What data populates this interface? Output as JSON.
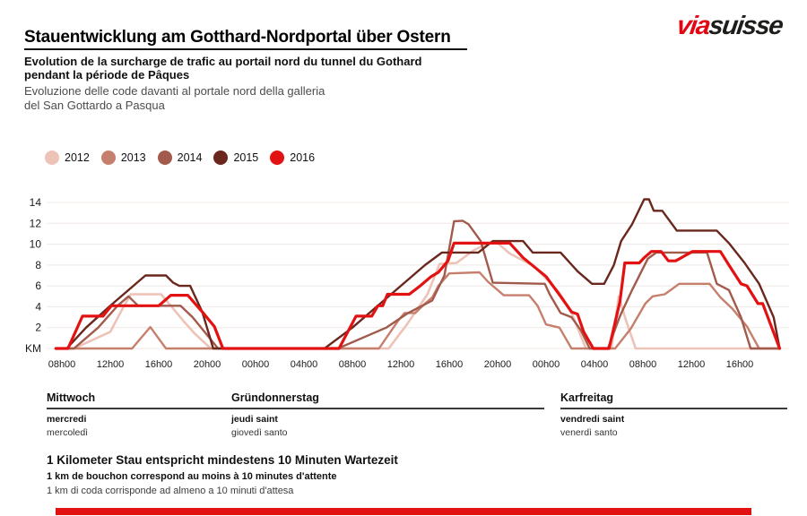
{
  "header": {
    "title": "Stauentwicklung am Gotthard-Nordportal über Ostern",
    "subtitle_fr": [
      "Evolution de la surcharge de trafic au portail nord du tunnel du Gothard",
      "pendant la période de Pâques"
    ],
    "subtitle_it": [
      "Evoluzione delle code davanti al portale nord della galleria",
      "del San Gottardo a Pasqua"
    ],
    "logo": {
      "part1": "via",
      "part2": "suisse",
      "color1": "#e30613",
      "color2": "#1d1d1b"
    }
  },
  "days": [
    {
      "de": "Mittwoch",
      "fr": "mercredi",
      "it": "mercoledì"
    },
    {
      "de": "Gründonnerstag",
      "fr": "jeudi saint",
      "it": "giovedì santo"
    },
    {
      "de": "Karfreitag",
      "fr": "vendredi saint",
      "it": "venerdì santo"
    }
  ],
  "footnote": {
    "de": "1 Kilometer Stau entspricht mindestens 10 Minuten Wartezeit",
    "fr": "1 km de bouchon correspond au moins à 10 minutes d'attente",
    "it": "1 km di coda corrisponde ad almeno a 10 minuti d'attesa"
  },
  "colors": {
    "accent_red": "#e31212",
    "grid": "#efe8e6",
    "text": "#111111",
    "text_gray": "#4c4c4c",
    "day_rule": "#3a3a3a"
  },
  "chart_data": {
    "type": "line",
    "title": "Stauentwicklung am Gotthard-Nordportal über Ostern",
    "ylabel": "KM",
    "y_axis": {
      "zero_label": "KM",
      "ticks": [
        2,
        4,
        6,
        8,
        10,
        12,
        14
      ],
      "max": 14,
      "min": 0
    },
    "x_axis": {
      "unit": "time of day, hours since Mittwoch 08h00",
      "tick_every_hours": 4,
      "tick_labels": [
        "08h00",
        "12h00",
        "16h00",
        "20h00",
        "00h00",
        "04h00",
        "08h00",
        "12h00",
        "16h00",
        "20h00",
        "00h00",
        "04h00",
        "08h00",
        "12h00",
        "16h00"
      ],
      "sections": [
        "Mittwoch 08h00-24h00",
        "Gründonnerstag 00h00-24h00",
        "Karfreitag 00h00-20h00"
      ],
      "hours_total": 60
    },
    "grid": true,
    "legend_position": "top-left",
    "series": [
      {
        "name": "2012",
        "color": "#edc2b7",
        "points": [
          [
            -0.5,
            0
          ],
          [
            1,
            0
          ],
          [
            2.5,
            0.8
          ],
          [
            4,
            1.6
          ],
          [
            5,
            3.8
          ],
          [
            5.7,
            5.2
          ],
          [
            8.2,
            5.2
          ],
          [
            9,
            4.1
          ],
          [
            10,
            2.7
          ],
          [
            11,
            1.4
          ],
          [
            12.3,
            0
          ],
          [
            27,
            0
          ],
          [
            28.5,
            2.3
          ],
          [
            30.2,
            5.2
          ],
          [
            31.2,
            8.1
          ],
          [
            32.6,
            8.2
          ],
          [
            34,
            9.4
          ],
          [
            35.2,
            10.1
          ],
          [
            36,
            10.1
          ],
          [
            37,
            9.1
          ],
          [
            39,
            7.9
          ],
          [
            40,
            6.7
          ],
          [
            41,
            5.5
          ],
          [
            42,
            3.7
          ],
          [
            43.3,
            0
          ],
          [
            45.4,
            0
          ],
          [
            46,
            5
          ],
          [
            46.6,
            2.7
          ],
          [
            47.4,
            0
          ],
          [
            59.2,
            0
          ]
        ]
      },
      {
        "name": "2013",
        "color": "#c67f6c",
        "points": [
          [
            -0.5,
            0
          ],
          [
            5.8,
            0
          ],
          [
            7.3,
            2.05
          ],
          [
            8.6,
            0
          ],
          [
            26.2,
            0
          ],
          [
            27.8,
            2.7
          ],
          [
            28.3,
            3.4
          ],
          [
            29.2,
            3.4
          ],
          [
            30,
            4.3
          ],
          [
            30.6,
            4.9
          ],
          [
            31.1,
            6
          ],
          [
            32,
            7.2
          ],
          [
            34.5,
            7.3
          ],
          [
            35.2,
            6.4
          ],
          [
            36.5,
            5.1
          ],
          [
            38.6,
            5.1
          ],
          [
            39.3,
            4.1
          ],
          [
            40,
            2.3
          ],
          [
            41.1,
            2
          ],
          [
            42.1,
            0
          ],
          [
            45.7,
            0
          ],
          [
            47,
            1.9
          ],
          [
            48.2,
            4.3
          ],
          [
            48.8,
            5
          ],
          [
            49.8,
            5.2
          ],
          [
            51,
            6.2
          ],
          [
            53.5,
            6.2
          ],
          [
            54.4,
            4.9
          ],
          [
            55.4,
            3.8
          ],
          [
            56.6,
            2.1
          ],
          [
            57.6,
            0
          ],
          [
            59.2,
            0
          ]
        ]
      },
      {
        "name": "2014",
        "color": "#a25a4c",
        "points": [
          [
            -0.5,
            0
          ],
          [
            1,
            0
          ],
          [
            3,
            2
          ],
          [
            4.6,
            4.1
          ],
          [
            5.5,
            5
          ],
          [
            6.3,
            4.1
          ],
          [
            9.8,
            4.1
          ],
          [
            10.8,
            3
          ],
          [
            11.5,
            2
          ],
          [
            12.9,
            0
          ],
          [
            22.8,
            0
          ],
          [
            26.8,
            2
          ],
          [
            28.6,
            3.4
          ],
          [
            29.6,
            4
          ],
          [
            30.6,
            4.6
          ],
          [
            31.6,
            7
          ],
          [
            32.4,
            12.2
          ],
          [
            33.1,
            12.25
          ],
          [
            33.6,
            11.9
          ],
          [
            34.6,
            10.3
          ],
          [
            35.6,
            6.3
          ],
          [
            39.9,
            6.2
          ],
          [
            40.3,
            5.2
          ],
          [
            41.2,
            3.4
          ],
          [
            42.1,
            3
          ],
          [
            42.9,
            1.7
          ],
          [
            43.6,
            0
          ],
          [
            45.1,
            0
          ],
          [
            46.1,
            3.1
          ],
          [
            47.1,
            5.6
          ],
          [
            48.4,
            8.6
          ],
          [
            49.1,
            9.2
          ],
          [
            53.3,
            9.2
          ],
          [
            54.1,
            6.2
          ],
          [
            55.1,
            5.6
          ],
          [
            56.1,
            3
          ],
          [
            56.9,
            0
          ],
          [
            59.2,
            0
          ]
        ]
      },
      {
        "name": "2015",
        "color": "#69271d",
        "points": [
          [
            -0.5,
            0
          ],
          [
            0.4,
            0
          ],
          [
            2,
            2
          ],
          [
            4,
            4.1
          ],
          [
            6,
            6.1
          ],
          [
            6.9,
            7
          ],
          [
            8.6,
            7
          ],
          [
            9.2,
            6.3
          ],
          [
            9.7,
            6
          ],
          [
            10.6,
            6
          ],
          [
            11.6,
            3.5
          ],
          [
            12.5,
            0
          ],
          [
            21.7,
            0
          ],
          [
            24,
            2
          ],
          [
            26,
            4
          ],
          [
            28,
            6
          ],
          [
            30,
            8
          ],
          [
            31.4,
            9.2
          ],
          [
            34.4,
            9.2
          ],
          [
            35.6,
            10.3
          ],
          [
            38.1,
            10.3
          ],
          [
            38.9,
            9.2
          ],
          [
            41.2,
            9.2
          ],
          [
            42.6,
            7.4
          ],
          [
            43.8,
            6.2
          ],
          [
            44.8,
            6.2
          ],
          [
            45.6,
            8
          ],
          [
            46.2,
            10.3
          ],
          [
            47.1,
            11.9
          ],
          [
            48.1,
            14.3
          ],
          [
            48.5,
            14.3
          ],
          [
            48.9,
            13.2
          ],
          [
            49.6,
            13.2
          ],
          [
            50.8,
            11.3
          ],
          [
            54.1,
            11.3
          ],
          [
            55.1,
            10.1
          ],
          [
            56.4,
            8.2
          ],
          [
            57.6,
            6.2
          ],
          [
            58.8,
            3
          ],
          [
            59.3,
            0
          ]
        ]
      },
      {
        "name": "2016",
        "color": "#e31212",
        "points": [
          [
            -0.5,
            0
          ],
          [
            0.5,
            0
          ],
          [
            1.7,
            3.1
          ],
          [
            3.4,
            3.1
          ],
          [
            4.1,
            4.1
          ],
          [
            8,
            4.1
          ],
          [
            9,
            5.1
          ],
          [
            10.4,
            5.1
          ],
          [
            11.6,
            3.5
          ],
          [
            12.6,
            2.1
          ],
          [
            13.3,
            0
          ],
          [
            22.9,
            0
          ],
          [
            24.3,
            3.1
          ],
          [
            25.6,
            3.1
          ],
          [
            26.1,
            4.1
          ],
          [
            26.5,
            4.1
          ],
          [
            26.9,
            5.2
          ],
          [
            28.7,
            5.2
          ],
          [
            29.6,
            6
          ],
          [
            30.5,
            6.9
          ],
          [
            31.1,
            7.3
          ],
          [
            31.9,
            8.4
          ],
          [
            32.4,
            10.1
          ],
          [
            37,
            10.1
          ],
          [
            38.1,
            8.7
          ],
          [
            40,
            6.9
          ],
          [
            41.2,
            5
          ],
          [
            42.1,
            3.5
          ],
          [
            42.6,
            3.3
          ],
          [
            43.1,
            1.6
          ],
          [
            43.9,
            0
          ],
          [
            45.2,
            0
          ],
          [
            46.1,
            4.5
          ],
          [
            46.5,
            8.2
          ],
          [
            47.7,
            8.2
          ],
          [
            48.1,
            8.7
          ],
          [
            48.7,
            9.3
          ],
          [
            49.5,
            9.3
          ],
          [
            50.1,
            8.4
          ],
          [
            50.7,
            8.4
          ],
          [
            52.1,
            9.3
          ],
          [
            54.4,
            9.3
          ],
          [
            55.1,
            8
          ],
          [
            56.1,
            6.2
          ],
          [
            56.6,
            6
          ],
          [
            57.5,
            4.3
          ],
          [
            57.9,
            4.3
          ],
          [
            59.3,
            0
          ]
        ]
      }
    ]
  }
}
